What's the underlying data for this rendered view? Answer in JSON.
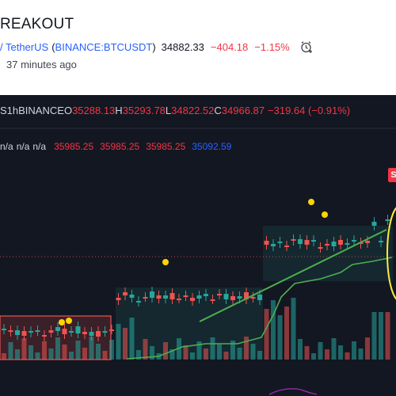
{
  "header": {
    "title": "REAKOUT",
    "pair": "/ TetherUS",
    "symbol_open": "(",
    "symbol": "BINANCE:BTCUSDT",
    "symbol_close": ")",
    "last_price": "34882.33",
    "change": "−404.18",
    "change_pct": "−1.15%",
    "time_ago": "37 minutes ago",
    "alarm_icon": "alarm-clock-plus-icon"
  },
  "legend": {
    "symbol_fragment": "S",
    "timeframe": "1h",
    "exchange": "BINANCE",
    "open_key": "O",
    "open": "35288.13",
    "high_key": "H",
    "high": "35293.78",
    "low_key": "L",
    "low": "34822.52",
    "close_key": "C",
    "close": "34966.87",
    "change": "−319.64 (−0.91%)"
  },
  "indicator": {
    "na1": "n/a",
    "na2": "n/a",
    "na3": "n/a",
    "v1": "35985.25",
    "v2": "35985.25",
    "v3": "35985.25",
    "v4": "35092.59"
  },
  "chart": {
    "sell_label": "S",
    "colors": {
      "background": "#131722",
      "up": "#26a69a",
      "down": "#ef5350",
      "green_line": "#4caf50",
      "marker": "#ffd600",
      "highlight": "#ffeb3b"
    }
  }
}
